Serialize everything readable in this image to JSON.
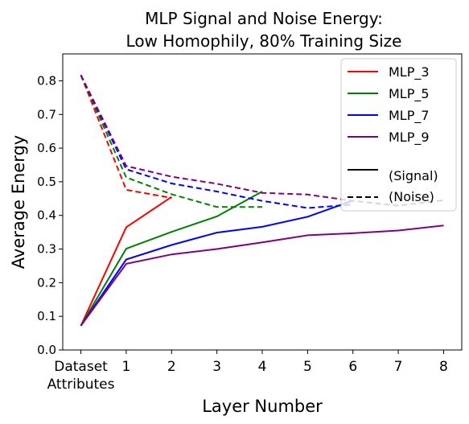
{
  "chart_data": {
    "type": "line",
    "title": "MLP Signal and Noise Energy:",
    "subtitle": "Low Homophily, 80% Training Size",
    "xlabel": "Layer Number",
    "ylabel": "Average Energy",
    "x": [
      0,
      1,
      2,
      3,
      4,
      5,
      6,
      7,
      8
    ],
    "x_tick_labels": [
      "Dataset",
      "1",
      "2",
      "3",
      "4",
      "5",
      "6",
      "7",
      "8"
    ],
    "x_tick_sublabel": "Attributes",
    "y_ticks": [
      "0.0",
      "0.1",
      "0.2",
      "0.3",
      "0.4",
      "0.5",
      "0.6",
      "0.7",
      "0.8"
    ],
    "xlim": [
      -0.4,
      8.4
    ],
    "ylim": [
      0.0,
      0.88
    ],
    "grid": false,
    "legend_position": "top-right",
    "series": [
      {
        "name": "MLP_3",
        "color": "#ff0000",
        "style": "signal",
        "x": [
          0,
          1,
          2
        ],
        "values": [
          0.072,
          0.365,
          0.455
        ]
      },
      {
        "name": "MLP_3",
        "color": "#ff0000",
        "style": "noise",
        "x": [
          0,
          1,
          2
        ],
        "values": [
          0.817,
          0.476,
          0.452
        ]
      },
      {
        "name": "MLP_5",
        "color": "#008000",
        "style": "signal",
        "x": [
          0,
          1,
          2,
          3,
          4
        ],
        "values": [
          0.072,
          0.301,
          0.351,
          0.397,
          0.471
        ]
      },
      {
        "name": "MLP_5",
        "color": "#008000",
        "style": "noise",
        "x": [
          0,
          1,
          2,
          3,
          4
        ],
        "values": [
          0.817,
          0.513,
          0.463,
          0.425,
          0.425
        ]
      },
      {
        "name": "MLP_7",
        "color": "#0000ff",
        "style": "signal",
        "x": [
          0,
          1,
          2,
          3,
          4,
          5,
          6
        ],
        "values": [
          0.072,
          0.269,
          0.312,
          0.349,
          0.366,
          0.396,
          0.444
        ]
      },
      {
        "name": "MLP_7",
        "color": "#0000ff",
        "style": "noise",
        "x": [
          0,
          1,
          2,
          3,
          4,
          5,
          6
        ],
        "values": [
          0.817,
          0.537,
          0.495,
          0.471,
          0.443,
          0.422,
          0.432
        ]
      },
      {
        "name": "MLP_9",
        "color": "#800080",
        "style": "signal",
        "x": [
          0,
          1,
          2,
          3,
          4,
          5,
          6,
          7,
          8
        ],
        "values": [
          0.072,
          0.256,
          0.284,
          0.3,
          0.32,
          0.341,
          0.347,
          0.355,
          0.37
        ]
      },
      {
        "name": "MLP_9",
        "color": "#800080",
        "style": "noise",
        "x": [
          0,
          1,
          2,
          3,
          4,
          5,
          6,
          7,
          8
        ],
        "values": [
          0.817,
          0.547,
          0.515,
          0.494,
          0.467,
          0.462,
          0.443,
          0.429,
          0.445
        ]
      }
    ],
    "legend": [
      {
        "label": "MLP_3",
        "color": "#ff0000",
        "style": "solid"
      },
      {
        "label": "MLP_5",
        "color": "#008000",
        "style": "solid"
      },
      {
        "label": "MLP_7",
        "color": "#0000ff",
        "style": "solid"
      },
      {
        "label": "MLP_9",
        "color": "#800080",
        "style": "solid"
      },
      {
        "label": " (Signal)",
        "color": "#000000",
        "style": "solid"
      },
      {
        "label": "(Noise)",
        "color": "#000000",
        "style": "dashed"
      }
    ]
  }
}
